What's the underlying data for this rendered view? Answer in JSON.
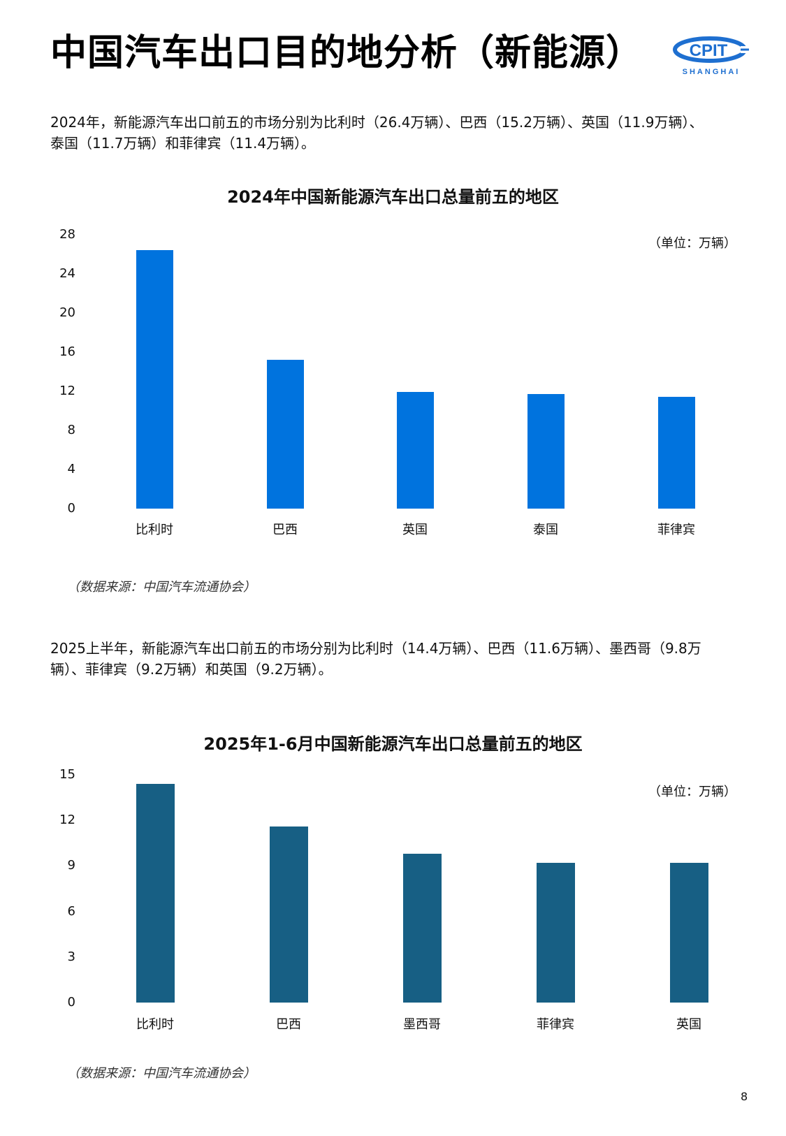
{
  "header": {
    "title": "中国汽车出口目的地分析（新能源）",
    "logo": {
      "text": "CPIT",
      "subtext": "SHANGHAI",
      "color": "#1e6fd0"
    }
  },
  "section1": {
    "paragraph_line1": "2024年，新能源汽车出口前五的市场分别为比利时（26.4万辆）、巴西（15.2万辆）、英国（11.9万辆）、",
    "paragraph_line2": "泰国（11.7万辆）和菲律宾（11.4万辆）。",
    "source": "（数据来源：中国汽车流通协会）"
  },
  "section2": {
    "paragraph_line1": "2025上半年，新能源汽车出口前五的市场分别为比利时（14.4万辆）、巴西（11.6万辆）、墨西哥（9.8万",
    "paragraph_line2": "辆）、菲律宾（9.2万辆）和英国（9.2万辆）。",
    "source": "（数据来源：中国汽车流通协会）"
  },
  "page_number": "8",
  "chart_data": [
    {
      "type": "bar",
      "title": "2024年中国新能源汽车出口总量前五的地区",
      "unit_label": "（单位：万辆）",
      "categories": [
        "比利时",
        "巴西",
        "英国",
        "泰国",
        "菲律宾"
      ],
      "values": [
        26.4,
        15.2,
        11.9,
        11.7,
        11.4
      ],
      "yticks": [
        "28",
        "24",
        "20",
        "16",
        "12",
        "8",
        "4",
        "0"
      ],
      "ylim": [
        0,
        28
      ],
      "xlabel": "",
      "ylabel": "",
      "grid": false,
      "legend": "none",
      "bar_color": "#0073de"
    },
    {
      "type": "bar",
      "title": "2025年1-6月中国新能源汽车出口总量前五的地区",
      "unit_label": "（单位：万辆）",
      "categories": [
        "比利时",
        "巴西",
        "墨西哥",
        "菲律宾",
        "英国"
      ],
      "values": [
        14.4,
        11.6,
        9.8,
        9.2,
        9.2
      ],
      "yticks": [
        "15",
        "12",
        "9",
        "6",
        "3",
        "0"
      ],
      "ylim": [
        0,
        15
      ],
      "xlabel": "",
      "ylabel": "",
      "grid": false,
      "legend": "none",
      "bar_color": "#175f84"
    }
  ]
}
